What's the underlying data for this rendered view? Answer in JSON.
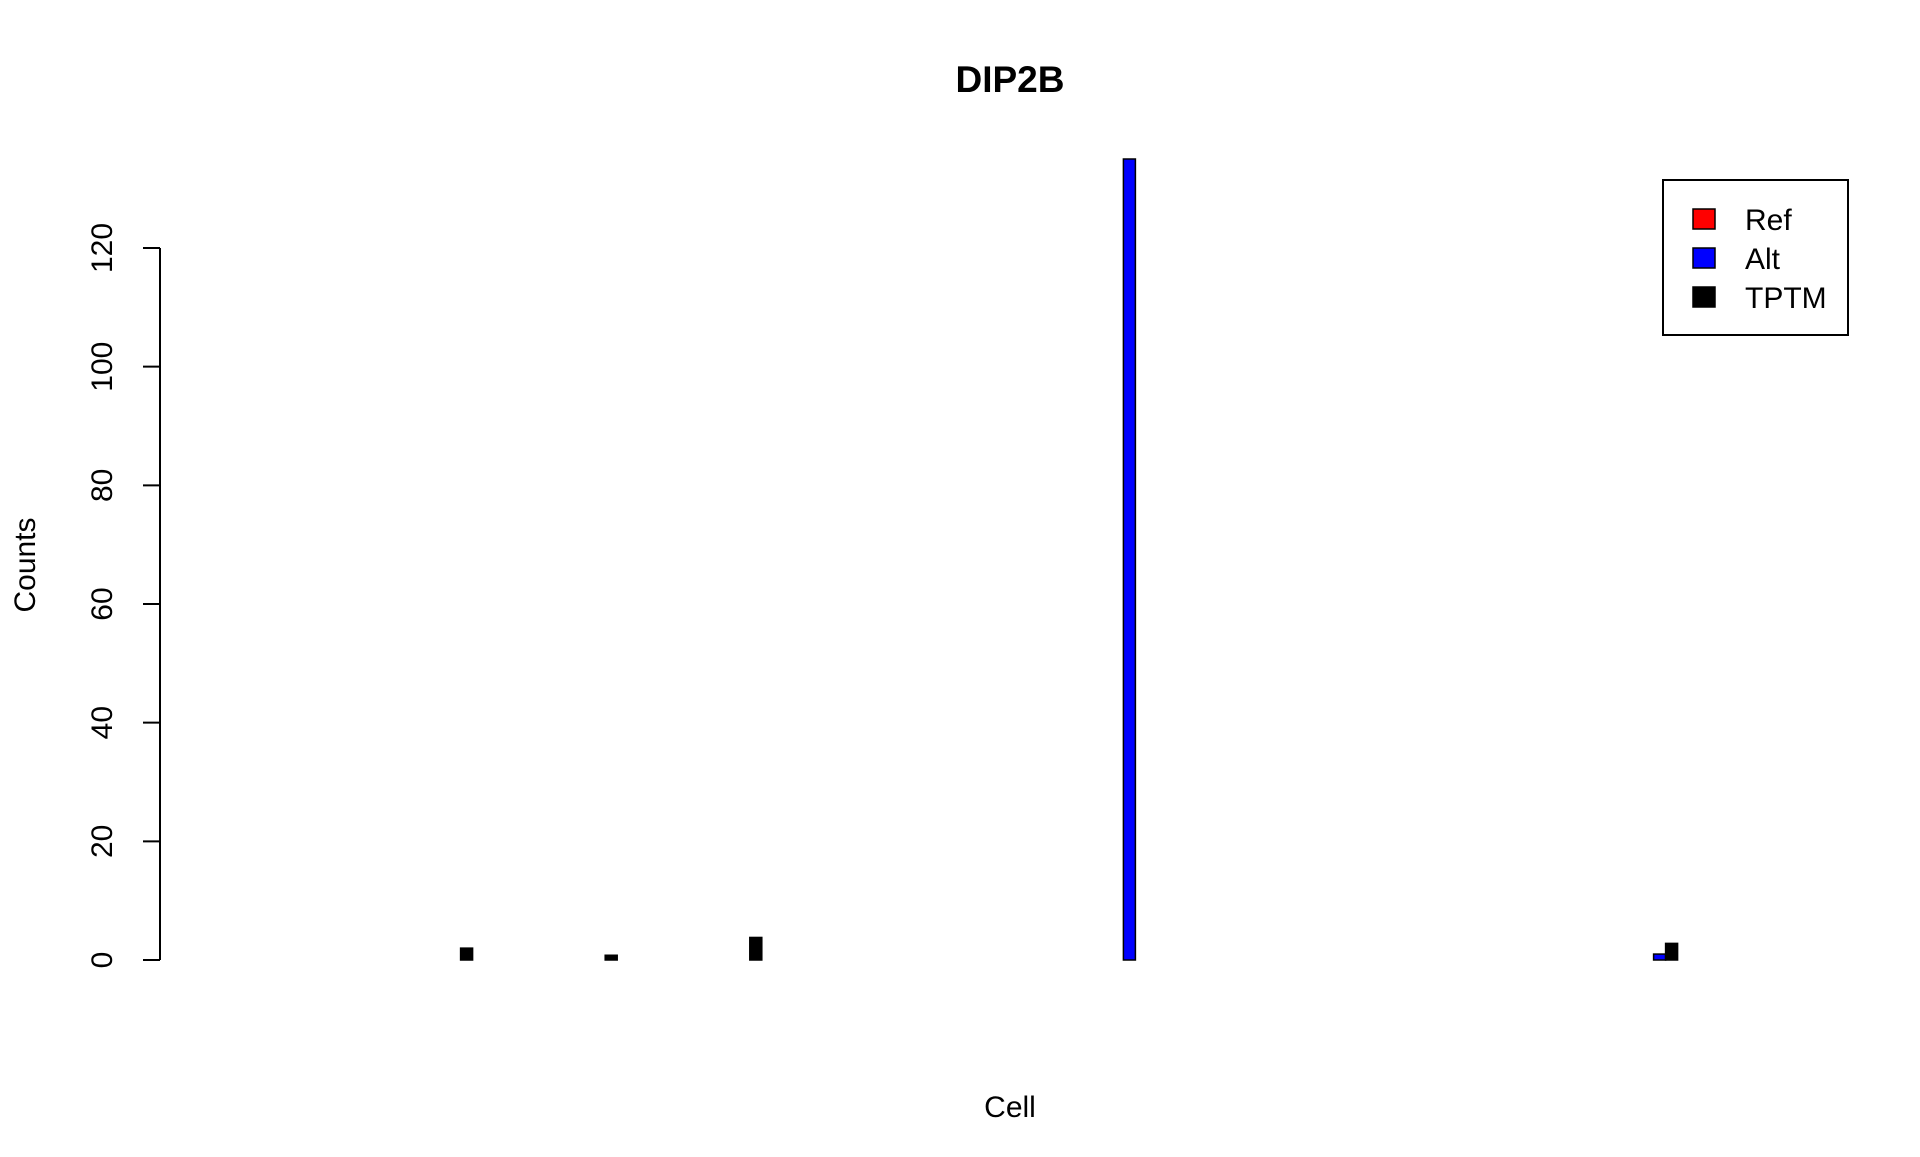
{
  "chart_data": {
    "type": "bar",
    "title": "DIP2B",
    "xlabel": "Cell",
    "ylabel": "Counts",
    "ylim": [
      0,
      135
    ],
    "yticks": [
      0,
      20,
      40,
      60,
      80,
      100,
      120
    ],
    "legend_position": "top-right",
    "grid": false,
    "categories": [
      "",
      "",
      "",
      "",
      "",
      "",
      "",
      "",
      "",
      "",
      "",
      "",
      "",
      "",
      "",
      "",
      "",
      "",
      "",
      "",
      "",
      "",
      "",
      "",
      "",
      "",
      "",
      "",
      "",
      "",
      "",
      "",
      "",
      ""
    ],
    "series": [
      {
        "name": "Ref",
        "color": "#ff0000",
        "values": [
          null,
          null,
          null,
          0,
          null,
          null,
          0,
          null,
          null,
          0,
          null,
          null,
          null,
          null,
          null,
          null,
          null,
          0,
          null,
          null,
          0,
          0,
          null,
          null,
          null,
          null,
          null,
          null,
          0,
          null,
          null,
          null,
          null,
          0
        ]
      },
      {
        "name": "Alt",
        "color": "#0000ff",
        "values": [
          null,
          null,
          null,
          0,
          null,
          null,
          0,
          null,
          null,
          0,
          null,
          null,
          null,
          null,
          null,
          null,
          null,
          135,
          null,
          null,
          0,
          0,
          null,
          null,
          null,
          null,
          null,
          null,
          1,
          null,
          null,
          null,
          null,
          0
        ]
      },
      {
        "name": "TPTM",
        "color": "#000000",
        "values": [
          null,
          null,
          null,
          2,
          null,
          null,
          0.8,
          null,
          null,
          3.8,
          null,
          null,
          null,
          null,
          null,
          null,
          null,
          0,
          null,
          null,
          0,
          0,
          null,
          null,
          null,
          null,
          null,
          null,
          2.8,
          null,
          null,
          null,
          null,
          0
        ]
      }
    ]
  }
}
